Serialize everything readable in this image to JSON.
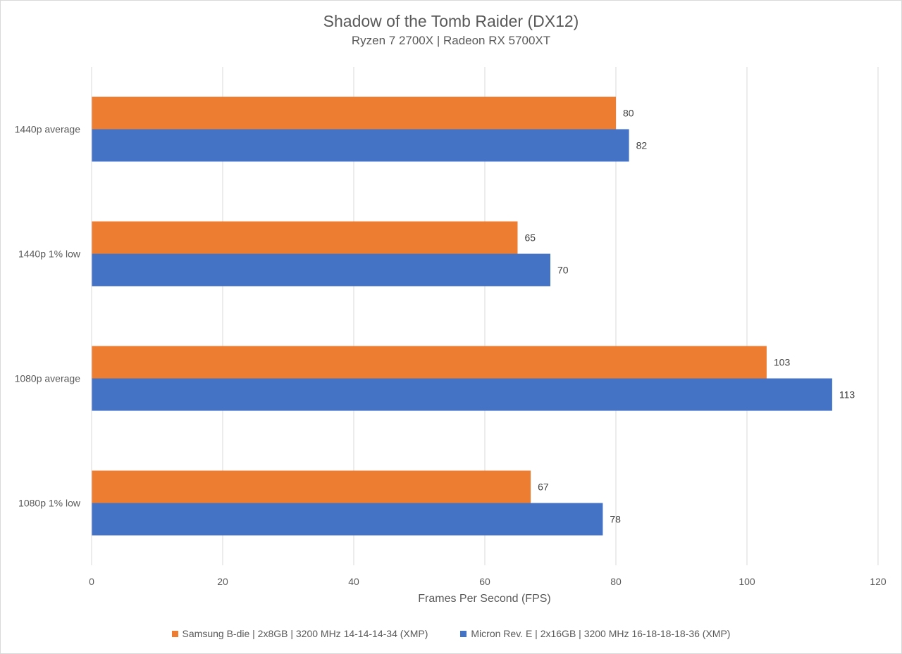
{
  "chart_data": {
    "type": "bar",
    "orientation": "horizontal",
    "title": "Shadow of the Tomb Raider (DX12)",
    "subtitle": "Ryzen 7 2700X | Radeon RX 5700XT",
    "xlabel": "Frames Per Second (FPS)",
    "ylabel": "",
    "xlim": [
      0,
      120
    ],
    "xticks": [
      0,
      20,
      40,
      60,
      80,
      100,
      120
    ],
    "grid": true,
    "legend_position": "bottom",
    "categories": [
      "1440p average",
      "1440p 1% low",
      "1080p average",
      "1080p 1% low"
    ],
    "series": [
      {
        "name": "Samsung B-die | 2x8GB | 3200 MHz 14-14-14-34 (XMP)",
        "color": "#ed7d31",
        "values": [
          80,
          65,
          103,
          67
        ]
      },
      {
        "name": "Micron Rev. E | 2x16GB | 3200 MHz 16-18-18-18-36 (XMP)",
        "color": "#4472c4",
        "values": [
          82,
          70,
          113,
          78
        ]
      }
    ]
  }
}
